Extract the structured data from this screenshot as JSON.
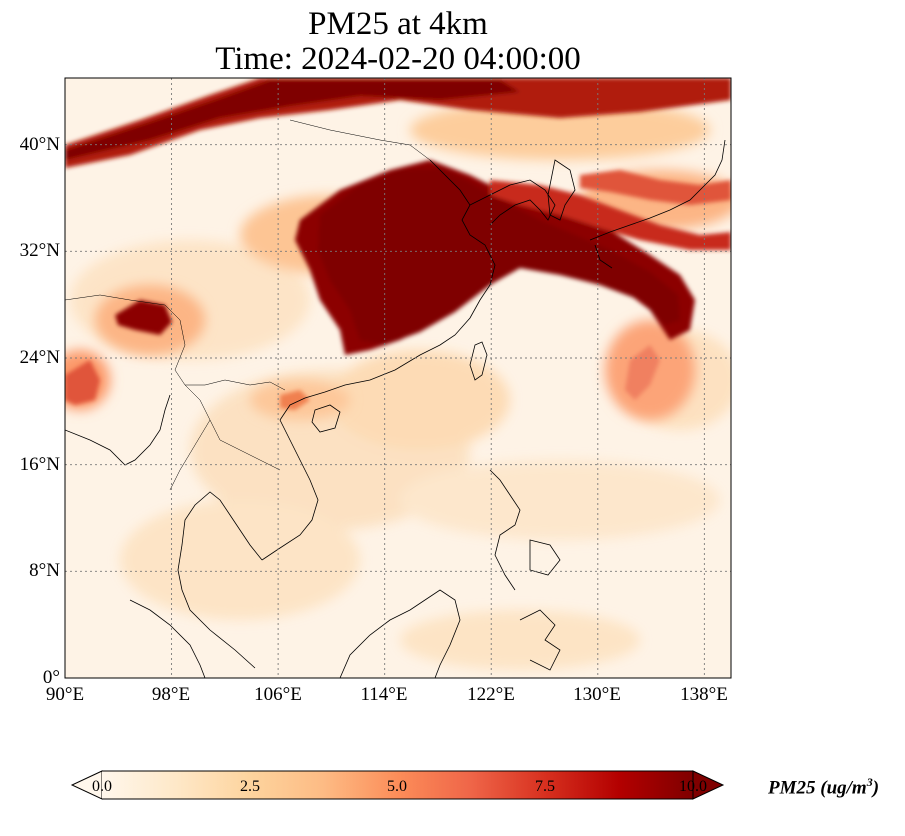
{
  "title": {
    "line1": "PM25 at 4km",
    "line2": "Time: 2024-02-20 04:00:00"
  },
  "map": {
    "lon_range": [
      90,
      140
    ],
    "lat_range": [
      0,
      45
    ],
    "x_ticks": [
      "90°E",
      "98°E",
      "106°E",
      "114°E",
      "122°E",
      "130°E",
      "138°E"
    ],
    "y_ticks": [
      "0°",
      "8°N",
      "16°N",
      "24°N",
      "32°N",
      "40°N"
    ],
    "gridlines": true,
    "colormap": "OrRd",
    "land_overlay_color": "#ffffff"
  },
  "colorbar": {
    "label_main": "PM25 (ug/m",
    "label_exp": "3",
    "label_end": ")",
    "ticks": [
      "0.0",
      "2.5",
      "5.0",
      "7.5",
      "10.0"
    ],
    "min": 0,
    "max": 10,
    "extend": "both",
    "colors": [
      "#fff7ec",
      "#fee8c8",
      "#fdd49e",
      "#fdbb84",
      "#fc8d59",
      "#ef6548",
      "#d7301f",
      "#b30000",
      "#7f0000"
    ]
  }
}
